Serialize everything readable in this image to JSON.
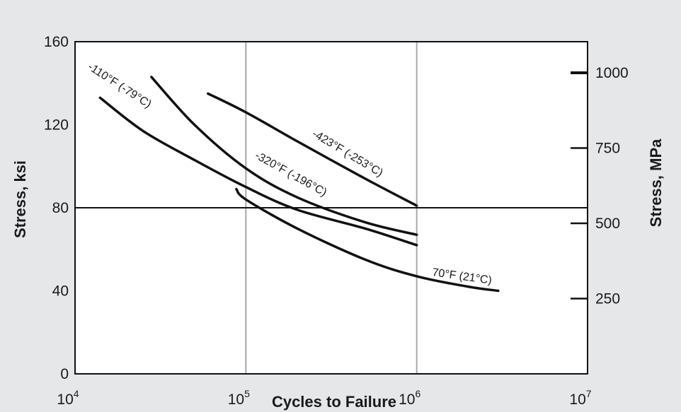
{
  "chart_data": {
    "type": "line",
    "xlabel": "Cycles to Failure",
    "ylabel": "Stress, ksi",
    "y2label": "Stress, MPa",
    "x_scale": "log",
    "xlim": [
      10000,
      10000000
    ],
    "ylim": [
      0,
      160
    ],
    "x_ticks": [
      {
        "value": 10000,
        "base": "10",
        "exp": "4"
      },
      {
        "value": 100000,
        "base": "10",
        "exp": "5"
      },
      {
        "value": 1000000,
        "base": "10",
        "exp": "6"
      },
      {
        "value": 10000000,
        "base": "10",
        "exp": "7"
      }
    ],
    "y_ticks": [
      0,
      40,
      80,
      120,
      160
    ],
    "y2_ticks": [
      {
        "label": "250",
        "mpa": 250
      },
      {
        "label": "500",
        "mpa": 500
      },
      {
        "label": "750",
        "mpa": 750
      },
      {
        "label": "1000",
        "mpa": 1000
      }
    ],
    "grid": "vertical lines at 10^5 and 10^6",
    "reference_line_y": 80,
    "series": [
      {
        "name": "-110°F (-79°C)",
        "color": "#111111",
        "x": [
          14000,
          25000,
          50000,
          100000,
          200000,
          500000,
          1000000
        ],
        "y": [
          133,
          117,
          103,
          90,
          79,
          70,
          62
        ]
      },
      {
        "name": "-320°F (-196°C)",
        "color": "#111111",
        "x": [
          28000,
          50000,
          100000,
          200000,
          500000,
          1000000
        ],
        "y": [
          143,
          120,
          99,
          85,
          73,
          67
        ]
      },
      {
        "name": "-423°F (-253°C)",
        "color": "#111111",
        "x": [
          60000,
          100000,
          200000,
          500000,
          1000000
        ],
        "y": [
          135,
          126,
          112,
          94,
          81
        ]
      },
      {
        "name": "70°F (21°C)",
        "color": "#111111",
        "x": [
          88000,
          100000,
          200000,
          500000,
          1000000,
          2000000,
          3000000
        ],
        "y": [
          89,
          84,
          70,
          55,
          47,
          42,
          40
        ]
      }
    ]
  }
}
